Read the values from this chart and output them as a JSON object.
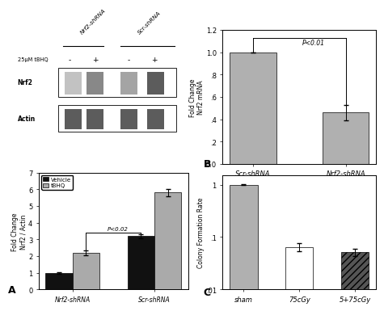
{
  "panel_B": {
    "categories": [
      "Scr-shRNA",
      "Nrf2-shRNA"
    ],
    "values": [
      1.0,
      0.46
    ],
    "errors": [
      0.0,
      0.07
    ],
    "bar_color": "#b0b0b0",
    "ylabel": "Fold Change\nNrf2 mRNA",
    "ylim": [
      0.0,
      1.2
    ],
    "yticks": [
      0.0,
      0.2,
      0.4,
      0.6,
      0.8,
      1.0,
      1.2
    ],
    "yticklabels": [
      "0.0",
      ".2",
      ".4",
      ".6",
      ".8",
      "1.0",
      "1.2"
    ],
    "sig_text": "P<0.01",
    "label": "B"
  },
  "panel_C": {
    "categories": [
      "sham",
      "75cGy",
      "5+75cGy"
    ],
    "values": [
      1.0,
      0.065,
      0.052
    ],
    "errors": [
      0.004,
      0.012,
      0.008
    ],
    "bar_colors": [
      "#b0b0b0",
      "#ffffff",
      "#555555"
    ],
    "bar_hatches": [
      null,
      null,
      "////"
    ],
    "ylabel": "Colony Formation Rate",
    "ylim": [
      0.01,
      1.5
    ],
    "yticks": [
      0.01,
      0.1,
      1.0
    ],
    "yticklabels": [
      ".01",
      ".1",
      "1"
    ],
    "label": "C"
  },
  "panel_A_bar": {
    "groups": [
      "Nrf2-shRNA",
      "Scr-shRNA"
    ],
    "vehicle_values": [
      1.0,
      3.2
    ],
    "tbhq_values": [
      2.2,
      5.8
    ],
    "vehicle_errors": [
      0.05,
      0.12
    ],
    "tbhq_errors": [
      0.15,
      0.22
    ],
    "vehicle_color": "#111111",
    "tbhq_color": "#aaaaaa",
    "ylabel": "Fold Change\nNrf2 / Actin",
    "ylim": [
      0,
      7
    ],
    "yticks": [
      0,
      1,
      2,
      3,
      4,
      5,
      6,
      7
    ],
    "yticklabels": [
      "0",
      "1",
      "2",
      "3",
      "4",
      "5",
      "6",
      "7"
    ],
    "sig_text": "P<0.02",
    "label": "A",
    "legend_vehicle": "Vehicle",
    "legend_tbhq": "tBHQ"
  },
  "blot": {
    "col_labels": [
      "Nrf2-shRNA",
      "Scr-shRNA"
    ],
    "row_label_25": "25μM tBHQ",
    "signs": [
      "-",
      "+",
      "-",
      "+"
    ],
    "nrf2_label": "Nrf2",
    "actin_label": "Actin",
    "nrf2_intensities": [
      0.28,
      0.55,
      0.42,
      0.75
    ],
    "actin_intensity": 0.75
  },
  "background_color": "#ffffff"
}
